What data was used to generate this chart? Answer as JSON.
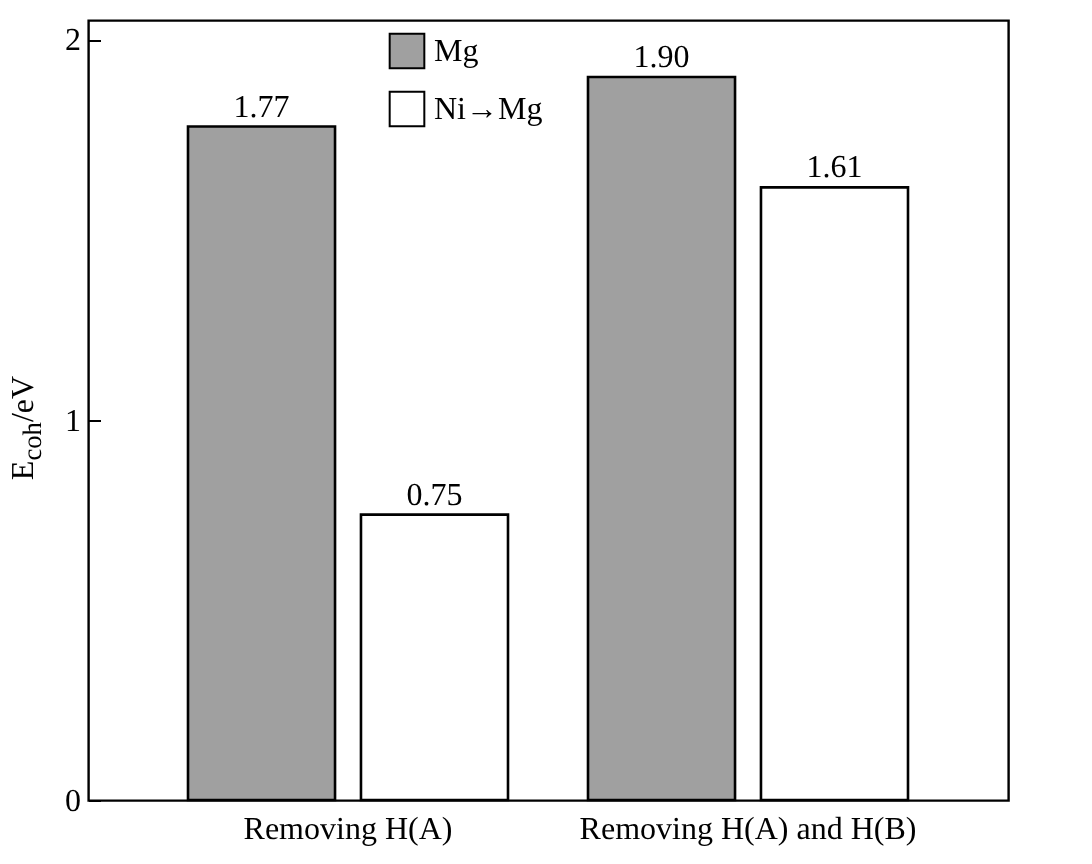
{
  "chart_data": {
    "type": "bar",
    "ylabel": "E$_{coh}$/eV",
    "categories": [
      "Removing H(A)",
      "Removing H(A) and H(B)"
    ],
    "series": [
      {
        "name": "Mg",
        "color": "#a0a0a0",
        "values": [
          1.77,
          1.9
        ],
        "value_labels": [
          "1.77",
          "1.90"
        ]
      },
      {
        "name": "Ni→Mg",
        "color": "#ffffff",
        "values": [
          0.75,
          1.61
        ],
        "value_labels": [
          "0.75",
          "1.61"
        ]
      }
    ],
    "ylim": [
      0,
      2.05
    ],
    "yticks": [
      0,
      1,
      2
    ],
    "grid": false,
    "legend": "top"
  }
}
